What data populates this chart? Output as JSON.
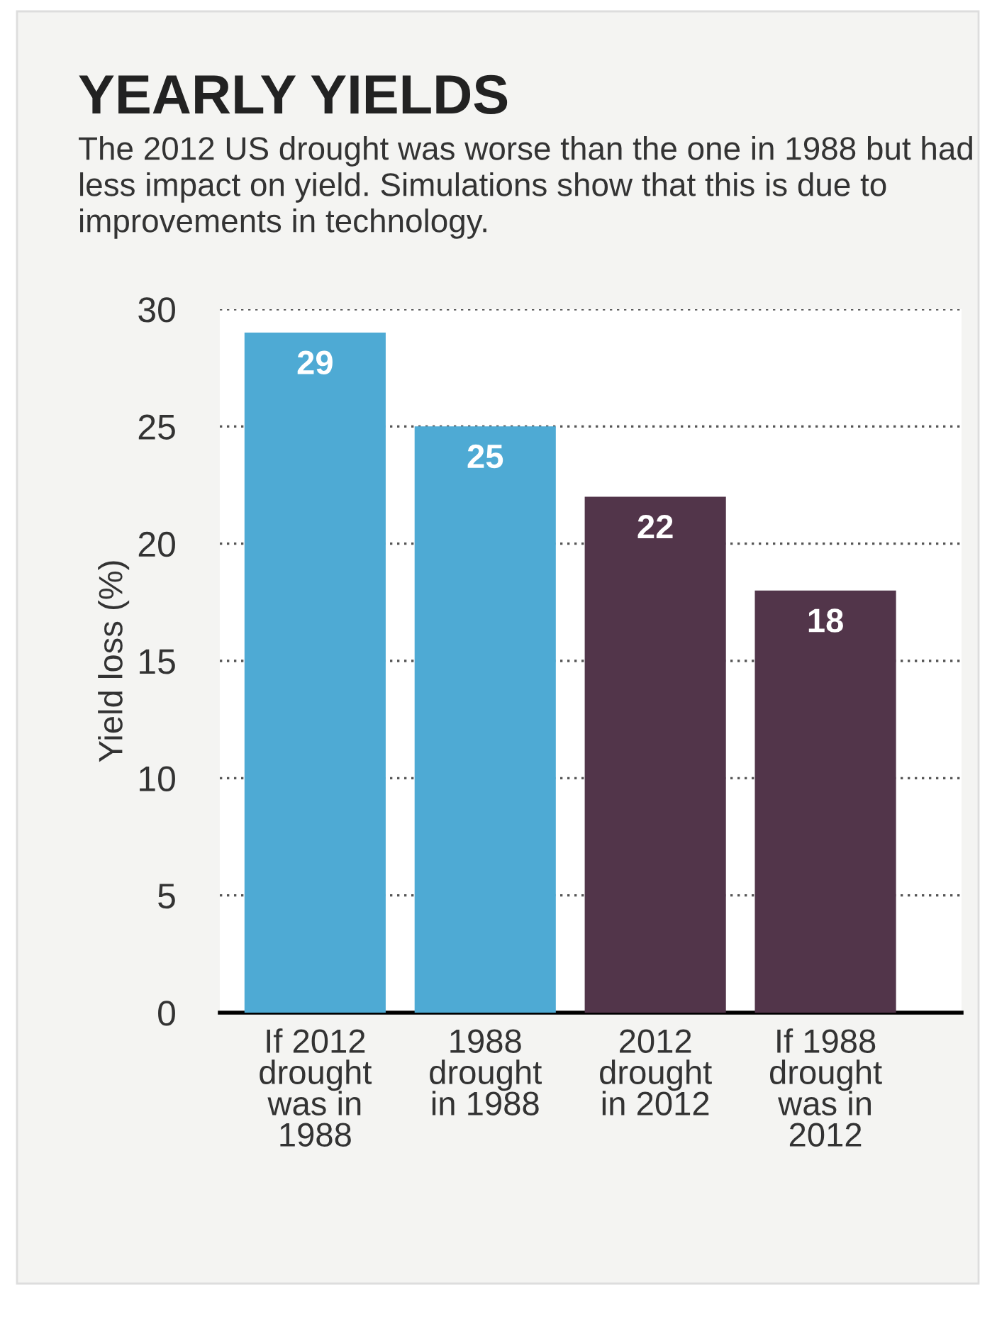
{
  "chart_data": {
    "type": "bar",
    "title": "YEARLY YIELDS",
    "subtitle": "The 2012 US drought was worse than the one in 1988 but had less impact on yield. Simulations show that this is due to improvements in technology.",
    "ylabel": "Yield loss (%)",
    "categories": [
      "If 2012\ndrought\nwas in\n1988",
      "1988\ndrought\nin 1988",
      "2012\ndrought\nin 2012",
      "If 1988\ndrought\nwas in\n2012"
    ],
    "values": [
      29,
      25,
      22,
      18
    ],
    "colors": [
      "#4eaad4",
      "#4eaad4",
      "#52354a",
      "#52354a"
    ],
    "ylim": [
      0,
      30
    ],
    "yticks": [
      0,
      5,
      10,
      15,
      20,
      25,
      30
    ],
    "grid": "y",
    "data_labels": true
  }
}
